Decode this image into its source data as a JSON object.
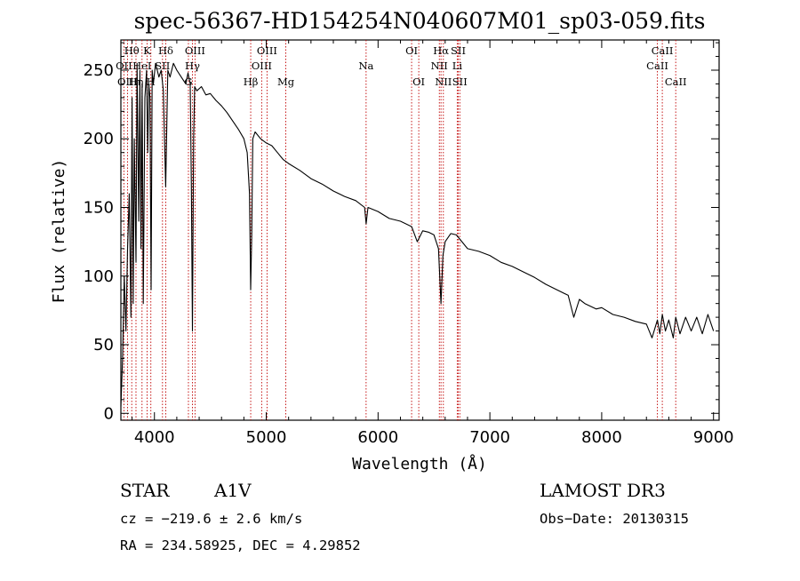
{
  "chart_data": {
    "type": "line",
    "title": "spec-56367-HD154254N040607M01_sp03-059.fits",
    "xlabel": "Wavelength (Å)",
    "ylabel": "Flux (relative)",
    "xlim": [
      3700,
      9050
    ],
    "ylim": [
      -5,
      272
    ],
    "xticks": [
      4000,
      5000,
      6000,
      7000,
      8000,
      9000
    ],
    "yticks": [
      0,
      50,
      100,
      150,
      200,
      250
    ],
    "grid": false,
    "series": [
      {
        "name": "flux",
        "x": [
          3700,
          3715,
          3730,
          3745,
          3760,
          3775,
          3790,
          3800,
          3810,
          3820,
          3835,
          3845,
          3860,
          3870,
          3880,
          3890,
          3900,
          3915,
          3930,
          3940,
          3950,
          3960,
          3970,
          3980,
          3990,
          4010,
          4040,
          4060,
          4080,
          4101,
          4120,
          4140,
          4170,
          4200,
          4240,
          4280,
          4300,
          4320,
          4330,
          4340,
          4350,
          4360,
          4380,
          4420,
          4460,
          4500,
          4550,
          4600,
          4650,
          4700,
          4750,
          4800,
          4830,
          4850,
          4861,
          4870,
          4880,
          4900,
          4950,
          5000,
          5050,
          5100,
          5150,
          5200,
          5300,
          5400,
          5500,
          5600,
          5700,
          5800,
          5880,
          5893,
          5910,
          6000,
          6100,
          6200,
          6300,
          6350,
          6400,
          6450,
          6500,
          6540,
          6563,
          6580,
          6600,
          6650,
          6700,
          6750,
          6800,
          6900,
          7000,
          7100,
          7200,
          7300,
          7400,
          7500,
          7600,
          7700,
          7750,
          7800,
          7850,
          7900,
          7950,
          8000,
          8100,
          8200,
          8300,
          8400,
          8450,
          8498,
          8520,
          8542,
          8570,
          8600,
          8640,
          8662,
          8700,
          8750,
          8800,
          8850,
          8900,
          8950,
          9000
        ],
        "values": [
          5,
          40,
          100,
          60,
          120,
          160,
          70,
          230,
          80,
          200,
          110,
          255,
          140,
          250,
          120,
          240,
          80,
          230,
          250,
          190,
          240,
          230,
          90,
          250,
          240,
          255,
          245,
          250,
          235,
          165,
          250,
          245,
          255,
          250,
          245,
          240,
          248,
          240,
          165,
          60,
          200,
          238,
          235,
          238,
          232,
          233,
          228,
          224,
          219,
          213,
          207,
          200,
          190,
          160,
          90,
          130,
          200,
          205,
          200,
          197,
          195,
          190,
          185,
          182,
          177,
          171,
          167,
          162,
          158,
          155,
          150,
          138,
          150,
          147,
          142,
          140,
          136,
          125,
          133,
          132,
          130,
          120,
          80,
          115,
          125,
          131,
          130,
          125,
          120,
          118,
          115,
          110,
          107,
          103,
          99,
          94,
          90,
          86,
          70,
          83,
          80,
          78,
          76,
          77,
          72,
          70,
          67,
          65,
          55,
          68,
          58,
          72,
          60,
          68,
          55,
          70,
          58,
          70,
          60,
          70,
          58,
          72,
          60
        ]
      }
    ],
    "lines": [
      {
        "name": "Hθ",
        "wavelength": 3797,
        "label_row": 1
      },
      {
        "name": "OII",
        "wavelength": 3727,
        "label_row": 2
      },
      {
        "name": "OIII",
        "wavelength": 3760,
        "label_row": 3
      },
      {
        "name": "Hη",
        "wavelength": 3835,
        "label_row": 3
      },
      {
        "name": "HeI",
        "wavelength": 3889,
        "label_row": 2
      },
      {
        "name": "K",
        "wavelength": 3934,
        "label_row": 1
      },
      {
        "name": "H",
        "wavelength": 3968,
        "label_row": 3
      },
      {
        "name": "Hδ",
        "wavelength": 4101,
        "label_row": 1
      },
      {
        "name": "SII",
        "wavelength": 4072,
        "label_row": 2
      },
      {
        "name": "OIII",
        "wavelength": 4363,
        "label_row": 1
      },
      {
        "name": "Hγ",
        "wavelength": 4340,
        "label_row": 2
      },
      {
        "name": "G",
        "wavelength": 4304,
        "label_row": 3
      },
      {
        "name": "Hβ",
        "wavelength": 4861,
        "label_row": 3
      },
      {
        "name": "OIII",
        "wavelength": 5007,
        "label_row": 1
      },
      {
        "name": "OIII",
        "wavelength": 4959,
        "label_row": 2
      },
      {
        "name": "Mg",
        "wavelength": 5175,
        "label_row": 3
      },
      {
        "name": "Na",
        "wavelength": 5893,
        "label_row": 2
      },
      {
        "name": "OI",
        "wavelength": 6300,
        "label_row": 1
      },
      {
        "name": "OI",
        "wavelength": 6364,
        "label_row": 3
      },
      {
        "name": "Hα",
        "wavelength": 6563,
        "label_row": 1
      },
      {
        "name": "NII",
        "wavelength": 6548,
        "label_row": 2
      },
      {
        "name": "NII",
        "wavelength": 6584,
        "label_row": 3
      },
      {
        "name": "SII",
        "wavelength": 6717,
        "label_row": 1
      },
      {
        "name": "Li",
        "wavelength": 6708,
        "label_row": 2
      },
      {
        "name": "SII",
        "wavelength": 6731,
        "label_row": 3
      },
      {
        "name": "CaII",
        "wavelength": 8542,
        "label_row": 1
      },
      {
        "name": "CaII",
        "wavelength": 8498,
        "label_row": 2
      },
      {
        "name": "CaII",
        "wavelength": 8662,
        "label_row": 3
      }
    ]
  },
  "info": {
    "object_class": "STAR",
    "subclass": "A1V",
    "survey": "LAMOST DR3",
    "redshift": "cz = −219.6 ± 2.6 km/s",
    "obs_date": "Obs−Date: 20130315",
    "coords": "RA = 234.58925, DEC =   4.29852"
  },
  "colors": {
    "spectrum": "#000000",
    "line_marker": "#c00000",
    "axis": "#000000",
    "background": "#ffffff"
  }
}
